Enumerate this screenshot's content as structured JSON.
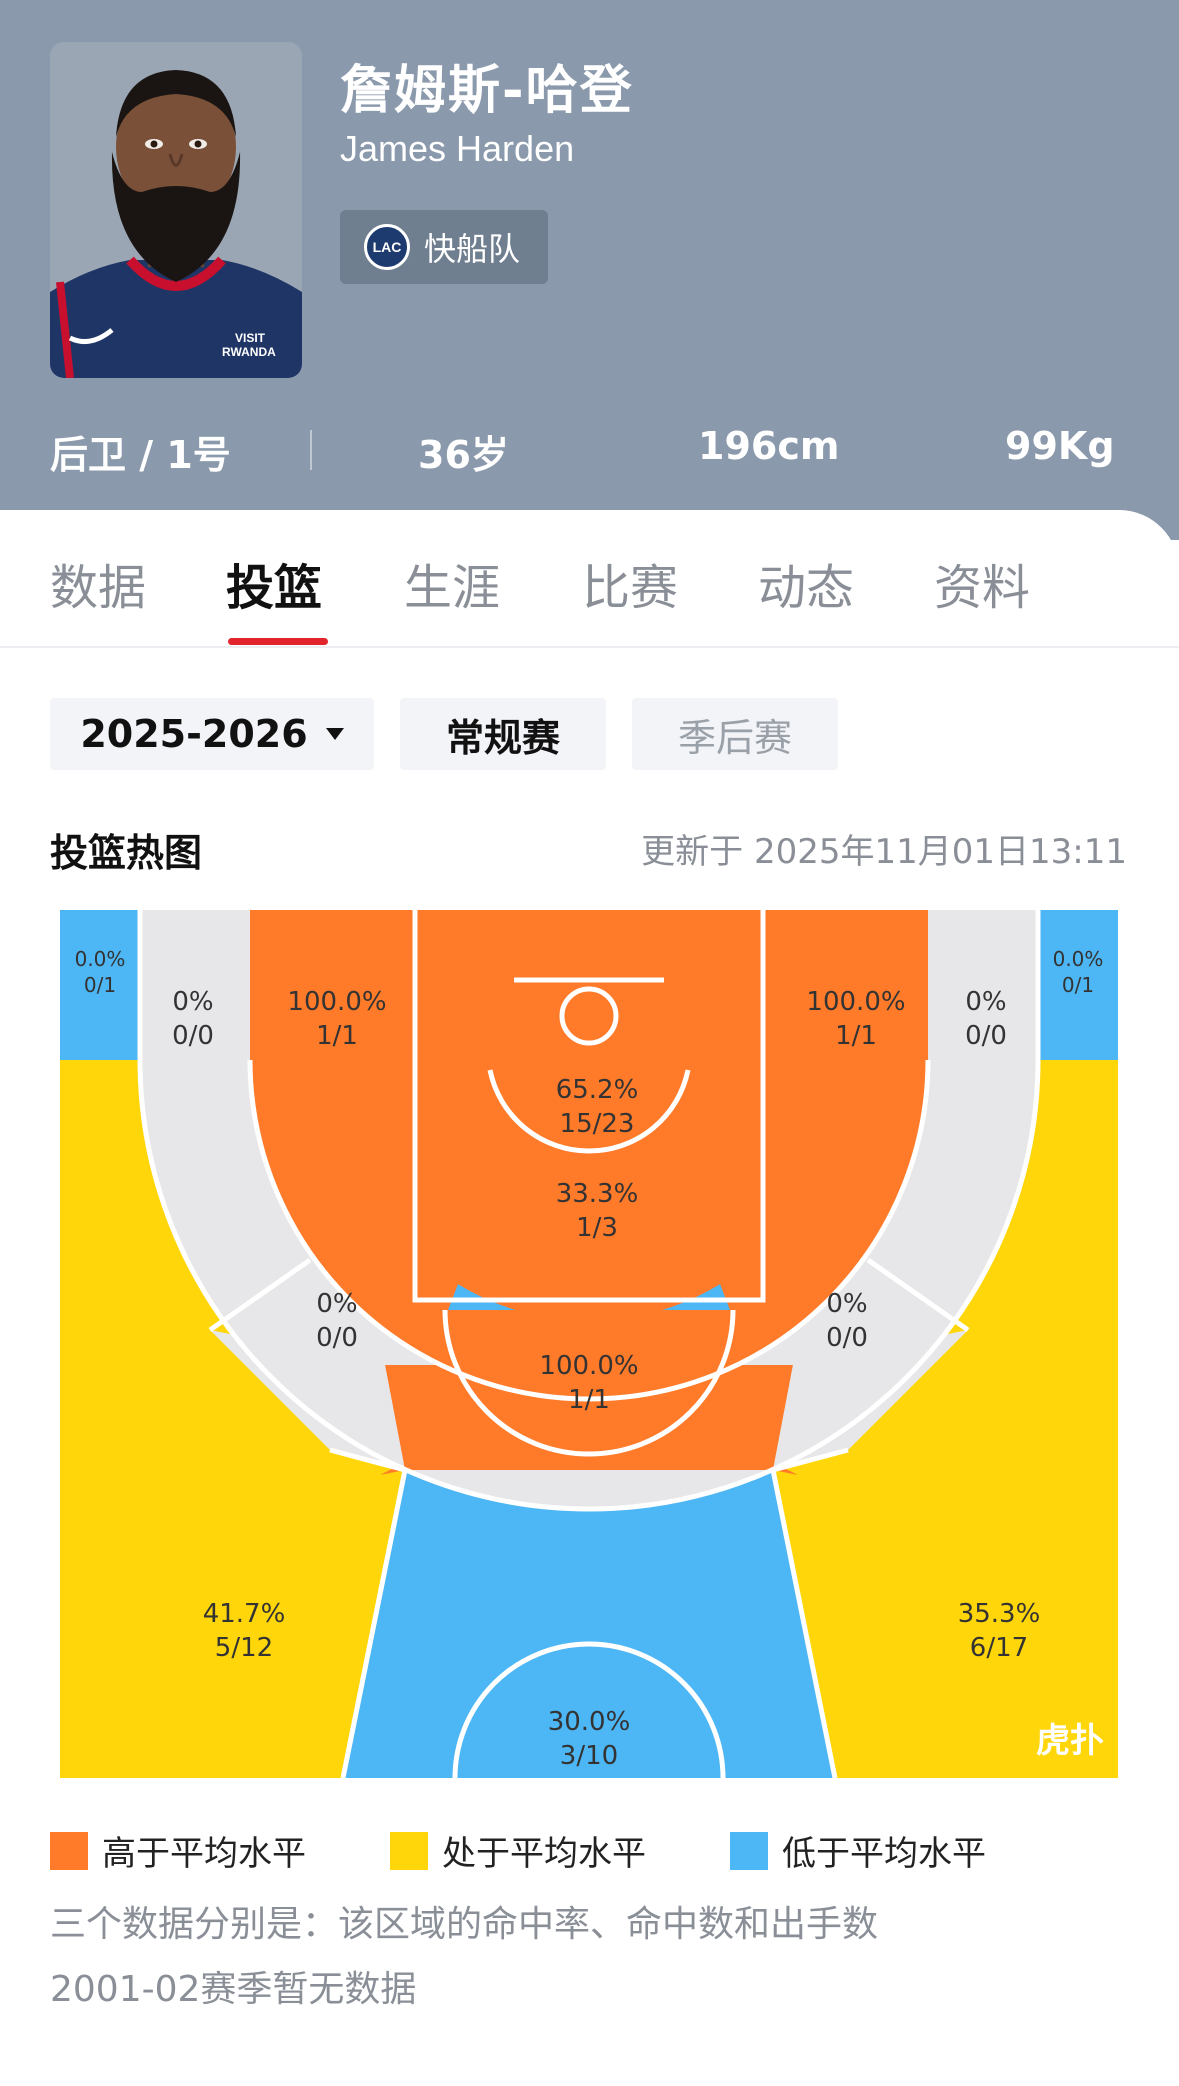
{
  "player": {
    "name_cn": "詹姆斯-哈登",
    "name_en": "James Harden",
    "team": "快船队",
    "team_logo_text": "LAC",
    "position": "后卫 / 1号",
    "age": "36岁",
    "height": "196cm",
    "weight": "99Kg"
  },
  "tabs": [
    "数据",
    "投篮",
    "生涯",
    "比赛",
    "动态",
    "资料"
  ],
  "active_tab": "投篮",
  "filters": {
    "season": "2025-2026",
    "regular": "常规赛",
    "playoff": "季后赛"
  },
  "section": {
    "title": "投篮热图",
    "updated": "更新于 2025年11月01日13:11"
  },
  "colors": {
    "above": "#ff7a29",
    "average": "#ffd60a",
    "below": "#4db6f5",
    "none": "#e7e7e9",
    "header_bg": "#8a99ab",
    "tab_indicator": "#e2242c"
  },
  "zones": {
    "left_corner3": {
      "pct": "0.0%",
      "made": "0/1"
    },
    "right_corner3": {
      "pct": "0.0%",
      "made": "0/1"
    },
    "left_wing_top_mid": {
      "pct": "0%",
      "made": "0/0"
    },
    "left_baseline_mid": {
      "pct": "100.0%",
      "made": "1/1"
    },
    "restricted": {
      "pct": "65.2%",
      "made": "15/23"
    },
    "right_baseline_mid": {
      "pct": "100.0%",
      "made": "1/1"
    },
    "right_wing_top_mid": {
      "pct": "0%",
      "made": "0/0"
    },
    "paint": {
      "pct": "33.3%",
      "made": "1/3"
    },
    "left_elbow_mid": {
      "pct": "0%",
      "made": "0/0"
    },
    "right_elbow_mid": {
      "pct": "0%",
      "made": "0/0"
    },
    "top_key_mid": {
      "pct": "100.0%",
      "made": "1/1"
    },
    "left_wing3": {
      "pct": "41.7%",
      "made": "5/12"
    },
    "right_wing3": {
      "pct": "35.3%",
      "made": "6/17"
    },
    "top3": {
      "pct": "30.0%",
      "made": "3/10"
    }
  },
  "watermark": "虎扑",
  "legend": {
    "above": "高于平均水平",
    "average": "处于平均水平",
    "below": "低于平均水平"
  },
  "notes": {
    "explain": "三个数据分别是：该区域的命中率、命中数和出手数",
    "no_data": "2001-02赛季暂无数据"
  }
}
